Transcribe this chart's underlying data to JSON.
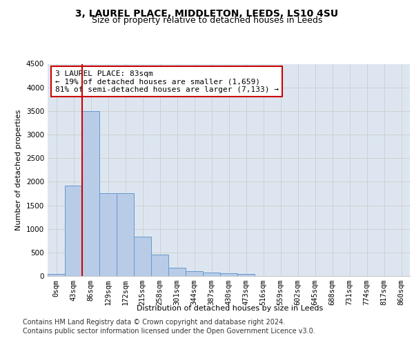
{
  "title_line1": "3, LAUREL PLACE, MIDDLETON, LEEDS, LS10 4SU",
  "title_line2": "Size of property relative to detached houses in Leeds",
  "xlabel": "Distribution of detached houses by size in Leeds",
  "ylabel": "Number of detached properties",
  "bar_labels": [
    "0sqm",
    "43sqm",
    "86sqm",
    "129sqm",
    "172sqm",
    "215sqm",
    "258sqm",
    "301sqm",
    "344sqm",
    "387sqm",
    "430sqm",
    "473sqm",
    "516sqm",
    "559sqm",
    "602sqm",
    "645sqm",
    "688sqm",
    "731sqm",
    "774sqm",
    "817sqm",
    "860sqm"
  ],
  "bar_values": [
    40,
    1920,
    3500,
    1750,
    1750,
    840,
    450,
    170,
    100,
    80,
    60,
    50,
    0,
    0,
    0,
    0,
    0,
    0,
    0,
    0,
    0
  ],
  "bar_color": "#b8ccE8",
  "bar_edge_color": "#6699cc",
  "vline_color": "#cc0000",
  "annotation_text": "3 LAUREL PLACE: 83sqm\n← 19% of detached houses are smaller (1,659)\n81% of semi-detached houses are larger (7,133) →",
  "annotation_box_facecolor": "#ffffff",
  "annotation_box_edgecolor": "#cc0000",
  "ylim": [
    0,
    4500
  ],
  "yticks": [
    0,
    500,
    1000,
    1500,
    2000,
    2500,
    3000,
    3500,
    4000,
    4500
  ],
  "grid_color": "#cccccc",
  "background_color": "#dde6f0",
  "footer_line1": "Contains HM Land Registry data © Crown copyright and database right 2024.",
  "footer_line2": "Contains public sector information licensed under the Open Government Licence v3.0.",
  "title1_fontsize": 10,
  "title2_fontsize": 9,
  "axis_label_fontsize": 8,
  "tick_fontsize": 7.5,
  "annotation_fontsize": 8,
  "footer_fontsize": 7
}
